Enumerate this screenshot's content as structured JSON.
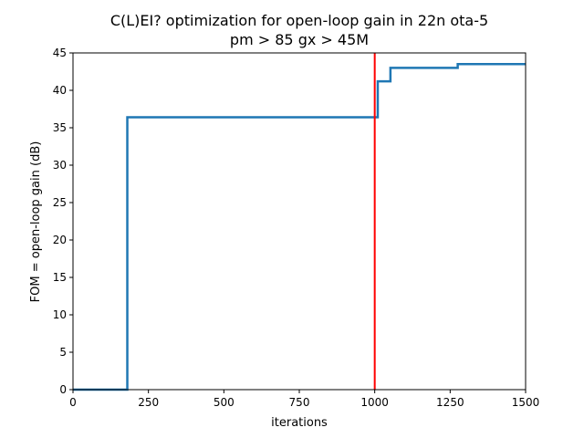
{
  "chart_data": {
    "type": "line",
    "title": "C(L)EI? optimization for open-loop gain in 22n ota-5",
    "subtitle": "pm > 85 gx > 45M",
    "xlabel": "iterations",
    "ylabel": "FOM = open-loop gain (dB)",
    "xlim": [
      0,
      1500
    ],
    "ylim": [
      0,
      45
    ],
    "x_ticks": [
      "0",
      "250",
      "500",
      "750",
      "1000",
      "1250",
      "1500"
    ],
    "y_ticks": [
      "0",
      "5",
      "10",
      "15",
      "20",
      "25",
      "30",
      "35",
      "40",
      "45"
    ],
    "grid": false,
    "legend": "none",
    "series": [
      {
        "color": "#1f77b4",
        "step": "post",
        "x": [
          0,
          180,
          1010,
          1052,
          1275,
          1500
        ],
        "values": [
          0,
          36.4,
          41.2,
          43.0,
          43.5,
          43.5
        ]
      }
    ],
    "vline": {
      "x": 1000,
      "color": "#ff0000"
    }
  }
}
